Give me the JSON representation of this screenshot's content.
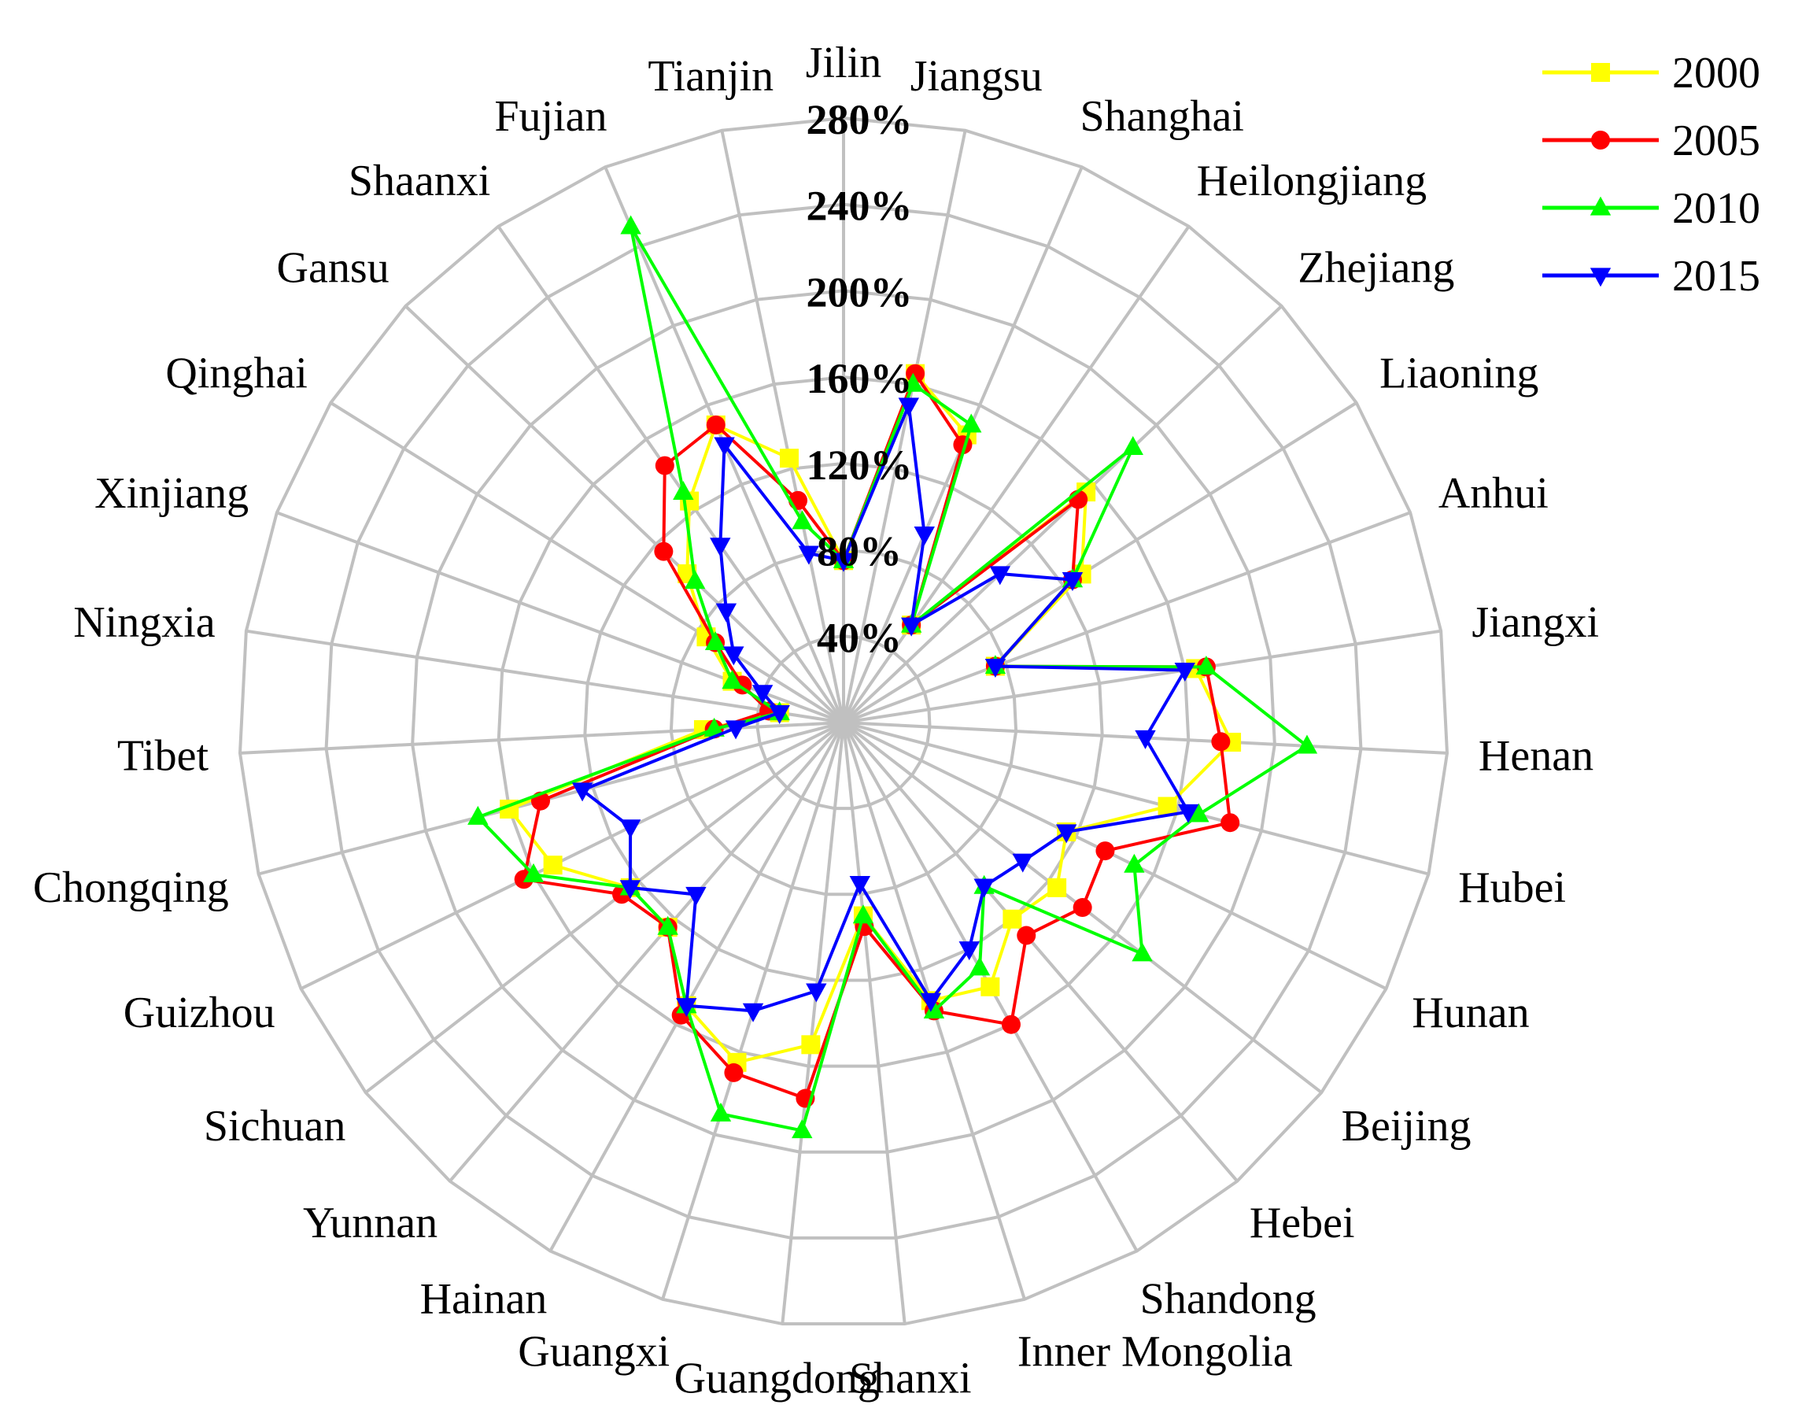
{
  "chart_data": {
    "type": "radar",
    "title": "",
    "categories": [
      "Jilin",
      "Jiangsu",
      "Shanghai",
      "Heilongjiang",
      "Zhejiang",
      "Liaoning",
      "Anhui",
      "Jiangxi",
      "Henan",
      "Hubei",
      "Hunan",
      "Beijing",
      "Hebei",
      "Shandong",
      "Inner Mongolia",
      "Shanxi",
      "Guangdong",
      "Guangxi",
      "Hainan",
      "Yunnan",
      "Sichuan",
      "Guizhou",
      "Chongqing",
      "Tibet",
      "Ningxia",
      "Xinjiang",
      "Qinghai",
      "Gansu",
      "Shaanxi",
      "Fujian",
      "Tianjin"
    ],
    "r_ticks": [
      40,
      80,
      120,
      160,
      200,
      240,
      280
    ],
    "r_tick_labels": [
      "40%",
      "80%",
      "120%",
      "160%",
      "200%",
      "240%",
      "280%"
    ],
    "r_range": [
      0,
      280
    ],
    "grid": true,
    "legend_position": "top-right",
    "series": [
      {
        "name": "2000",
        "color": "#ffff00",
        "marker": "square",
        "values": [
          75,
          165,
          145,
          55,
          155,
          130,
          75,
          165,
          180,
          155,
          115,
          125,
          120,
          140,
          135,
          90,
          150,
          165,
          150,
          125,
          125,
          150,
          160,
          65,
          30,
          55,
          75,
          100,
          125,
          150,
          125
        ]
      },
      {
        "name": "2005",
        "color": "#ff0000",
        "marker": "circle",
        "values": [
          75,
          165,
          140,
          55,
          150,
          125,
          75,
          170,
          175,
          185,
          135,
          140,
          130,
          160,
          140,
          95,
          175,
          170,
          155,
          125,
          130,
          165,
          145,
          60,
          35,
          50,
          70,
          115,
          145,
          150,
          105
        ]
      },
      {
        "name": "2010",
        "color": "#00ff00",
        "marker": "triangle-up",
        "values": [
          75,
          160,
          150,
          55,
          185,
          125,
          75,
          170,
          215,
          170,
          150,
          175,
          100,
          130,
          140,
          90,
          190,
          190,
          150,
          125,
          125,
          160,
          175,
          60,
          30,
          55,
          70,
          95,
          130,
          250,
          95
        ]
      },
      {
        "name": "2015",
        "color": "#0000ff",
        "marker": "triangle-down",
        "values": [
          75,
          150,
          95,
          55,
          100,
          125,
          75,
          160,
          140,
          165,
          115,
          105,
          100,
          120,
          135,
          75,
          125,
          140,
          150,
          105,
          125,
          110,
          125,
          50,
          30,
          40,
          60,
          75,
          100,
          140,
          80
        ]
      }
    ]
  }
}
